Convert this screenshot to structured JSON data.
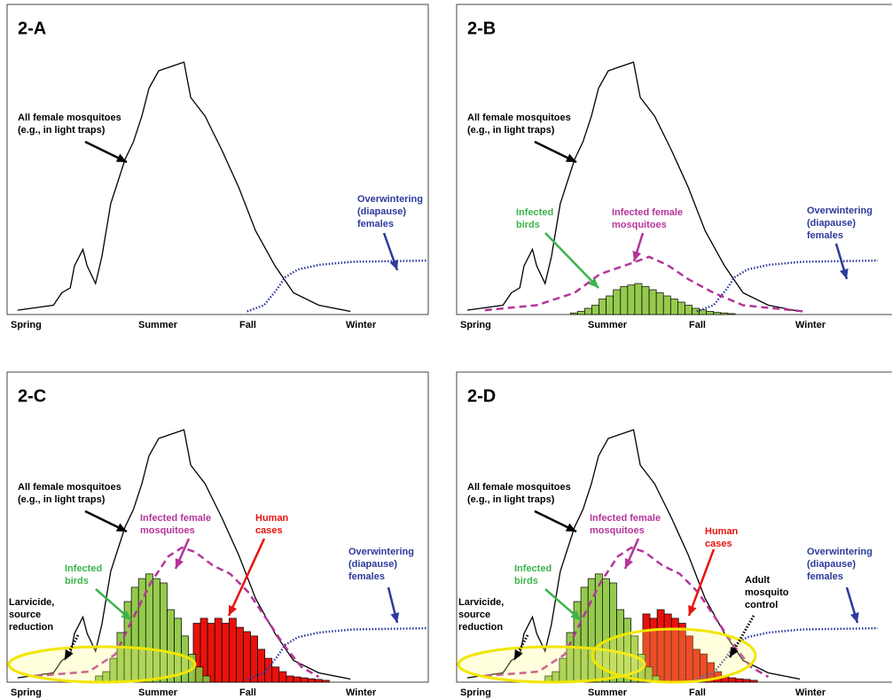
{
  "seasons": [
    "Spring",
    "Summer",
    "Fall",
    "Winter"
  ],
  "all_females": {
    "x": [
      2.5,
      11,
      13,
      15,
      16,
      18,
      19,
      21,
      22.5,
      24.6,
      28,
      30,
      32,
      33.7,
      36,
      39,
      42,
      43.6,
      47,
      51,
      55,
      59,
      63.6,
      68,
      74,
      81.5
    ],
    "y": [
      1.4,
      3,
      7,
      8.6,
      15.7,
      21,
      15.7,
      10,
      18.6,
      35.7,
      50,
      55.7,
      64,
      73,
      78.6,
      80,
      81.4,
      70,
      64,
      53,
      41,
      27,
      15.7,
      7,
      3,
      1
    ]
  },
  "overwintering": {
    "x": [
      57,
      61,
      64,
      66,
      69,
      74,
      82,
      100
    ],
    "y": [
      1,
      3,
      8,
      12,
      14.5,
      16,
      17,
      17.4
    ]
  },
  "panels": [
    {
      "title": "2-A",
      "labels": [
        {
          "lines": [
            "All female mosquitoes",
            "(e.g., in light traps)"
          ],
          "color": "#000000"
        },
        {
          "lines": [
            "Overwintering",
            "(diapause)",
            "females"
          ],
          "color": "#2d3a9b"
        }
      ]
    },
    {
      "title": "2-B",
      "infected_females": {
        "x": [
          6.7,
          19,
          28,
          34,
          40.4,
          45.7,
          50,
          55,
          61,
          68,
          82.5
        ],
        "y": [
          1.4,
          3,
          7,
          13,
          16,
          18.6,
          16,
          11.4,
          7,
          3,
          1
        ]
      },
      "infected_birds": {
        "x": [
          27,
          28.7,
          30.4,
          32.1,
          33.8,
          35.5,
          37.2,
          38.9,
          40.6,
          42.3,
          44,
          45.7,
          47.4,
          49.1,
          50.8,
          52.5,
          54.2,
          55.9,
          57.6,
          59.3,
          61,
          62.7,
          64.4
        ],
        "values": [
          0.5,
          1,
          2,
          3,
          5,
          6,
          8,
          9,
          9.5,
          10,
          9,
          8,
          7,
          6,
          5,
          4,
          3,
          2,
          1.5,
          1,
          0.7,
          0.5,
          0.3
        ]
      },
      "labels": [
        {
          "lines": [
            "All female mosquitoes",
            "(e.g., in light traps)"
          ],
          "color": "#000000"
        },
        {
          "lines": [
            "Infected",
            "birds"
          ],
          "color": "#3cb44b"
        },
        {
          "lines": [
            "Infected female",
            "mosquitoes"
          ],
          "color": "#b5359a"
        },
        {
          "lines": [
            "Overwintering",
            "(diapause)",
            "females"
          ],
          "color": "#2d3a9b"
        }
      ]
    },
    {
      "title": "2-C",
      "infected_females": {
        "x": [
          6.7,
          19.4,
          25.7,
          29.9,
          34.1,
          38.3,
          41.5,
          44.6,
          48.8,
          53,
          57.3,
          61.5,
          65.7,
          69.9,
          74
        ],
        "y": [
          2,
          3.4,
          9,
          20.6,
          32,
          40.6,
          43.4,
          42,
          37.7,
          34.9,
          29,
          20.6,
          12,
          4.9,
          1.7
        ]
      },
      "human_cases": {
        "x": [
          44.2,
          45.9,
          47.6,
          49.3,
          51,
          52.7,
          54.4,
          56.1,
          57.8,
          59.5,
          61.2,
          62.9,
          64.6,
          66.3,
          68,
          69.7,
          71.4,
          73.1,
          74.8
        ],
        "values": [
          19,
          20.6,
          19,
          20.6,
          19,
          20.6,
          17.7,
          16.3,
          14.9,
          10.6,
          7.7,
          4.9,
          3.4,
          2,
          1.7,
          1.4,
          1.1,
          0.9,
          0.6
        ]
      },
      "infected_birds": {
        "x": [
          21,
          22.7,
          24.4,
          26.1,
          27.8,
          29.5,
          31.2,
          32.9,
          34.6,
          36.3,
          38,
          39.7,
          41.4,
          43.1,
          44.8,
          46.5
        ],
        "values": [
          2,
          3.4,
          7.7,
          16,
          26,
          30.6,
          33.4,
          34.9,
          33.4,
          32,
          23.4,
          20.6,
          14.9,
          9,
          4.9,
          2
        ]
      },
      "labels": [
        {
          "lines": [
            "All female mosquitoes",
            "(e.g., in light traps)"
          ],
          "color": "#000000"
        },
        {
          "lines": [
            "Infected female",
            "mosquitoes"
          ],
          "color": "#b5359a"
        },
        {
          "lines": [
            "Human",
            "cases"
          ],
          "color": "#e8120c"
        },
        {
          "lines": [
            "Infected",
            "birds"
          ],
          "color": "#3cb44b"
        },
        {
          "lines": [
            "Overwintering",
            "(diapause)",
            "females"
          ],
          "color": "#2d3a9b"
        },
        {
          "lines": [
            "Larvicide,",
            "source",
            "reduction"
          ],
          "color": "#000000"
        }
      ]
    },
    {
      "title": "2-D",
      "infected_females": {
        "x": [
          6.7,
          19.4,
          25.7,
          29.9,
          34.1,
          38.3,
          41.5,
          44.6,
          48.8,
          53,
          57.3,
          61.5,
          65.7,
          69.9,
          74
        ],
        "y": [
          2,
          3.4,
          9,
          20.6,
          32,
          40.6,
          43.4,
          42,
          37.7,
          34.9,
          29,
          20.6,
          12,
          4.9,
          1.7
        ]
      },
      "human_cases": {
        "x": [
          44.2,
          45.9,
          47.6,
          49.3,
          51,
          52.7,
          54.4,
          56.1,
          57.8,
          59.5,
          61.2,
          62.9,
          64.6,
          66.3,
          68,
          69.7
        ],
        "values": [
          22,
          20.6,
          23.4,
          22,
          20.6,
          19,
          14.9,
          10.6,
          9.1,
          6.3,
          3.4,
          2,
          1.4,
          1.1,
          0.9,
          0.6
        ]
      },
      "infected_birds": {
        "x": [
          21,
          22.7,
          24.4,
          26.1,
          27.8,
          29.5,
          31.2,
          32.9,
          34.6,
          36.3,
          38,
          39.7,
          41.4,
          43.1,
          44.8,
          46.5
        ],
        "values": [
          2,
          3.4,
          7.7,
          16,
          26,
          30.6,
          33.4,
          34.9,
          33.4,
          32,
          23.4,
          20.6,
          14.9,
          9,
          4.9,
          2
        ]
      },
      "labels": [
        {
          "lines": [
            "All female mosquitoes",
            "(e.g., in light traps)"
          ],
          "color": "#000000"
        },
        {
          "lines": [
            "Infected female",
            "mosquitoes"
          ],
          "color": "#b5359a"
        },
        {
          "lines": [
            "Human",
            "cases"
          ],
          "color": "#e8120c"
        },
        {
          "lines": [
            "Infected",
            "birds"
          ],
          "color": "#3cb44b"
        },
        {
          "lines": [
            "Overwintering",
            "(diapause)",
            "females"
          ],
          "color": "#2d3a9b"
        },
        {
          "lines": [
            "Larvicide,",
            "source",
            "reduction"
          ],
          "color": "#000000"
        },
        {
          "lines": [
            "Adult",
            "mosquito",
            "control"
          ],
          "color": "#000000"
        }
      ]
    }
  ]
}
